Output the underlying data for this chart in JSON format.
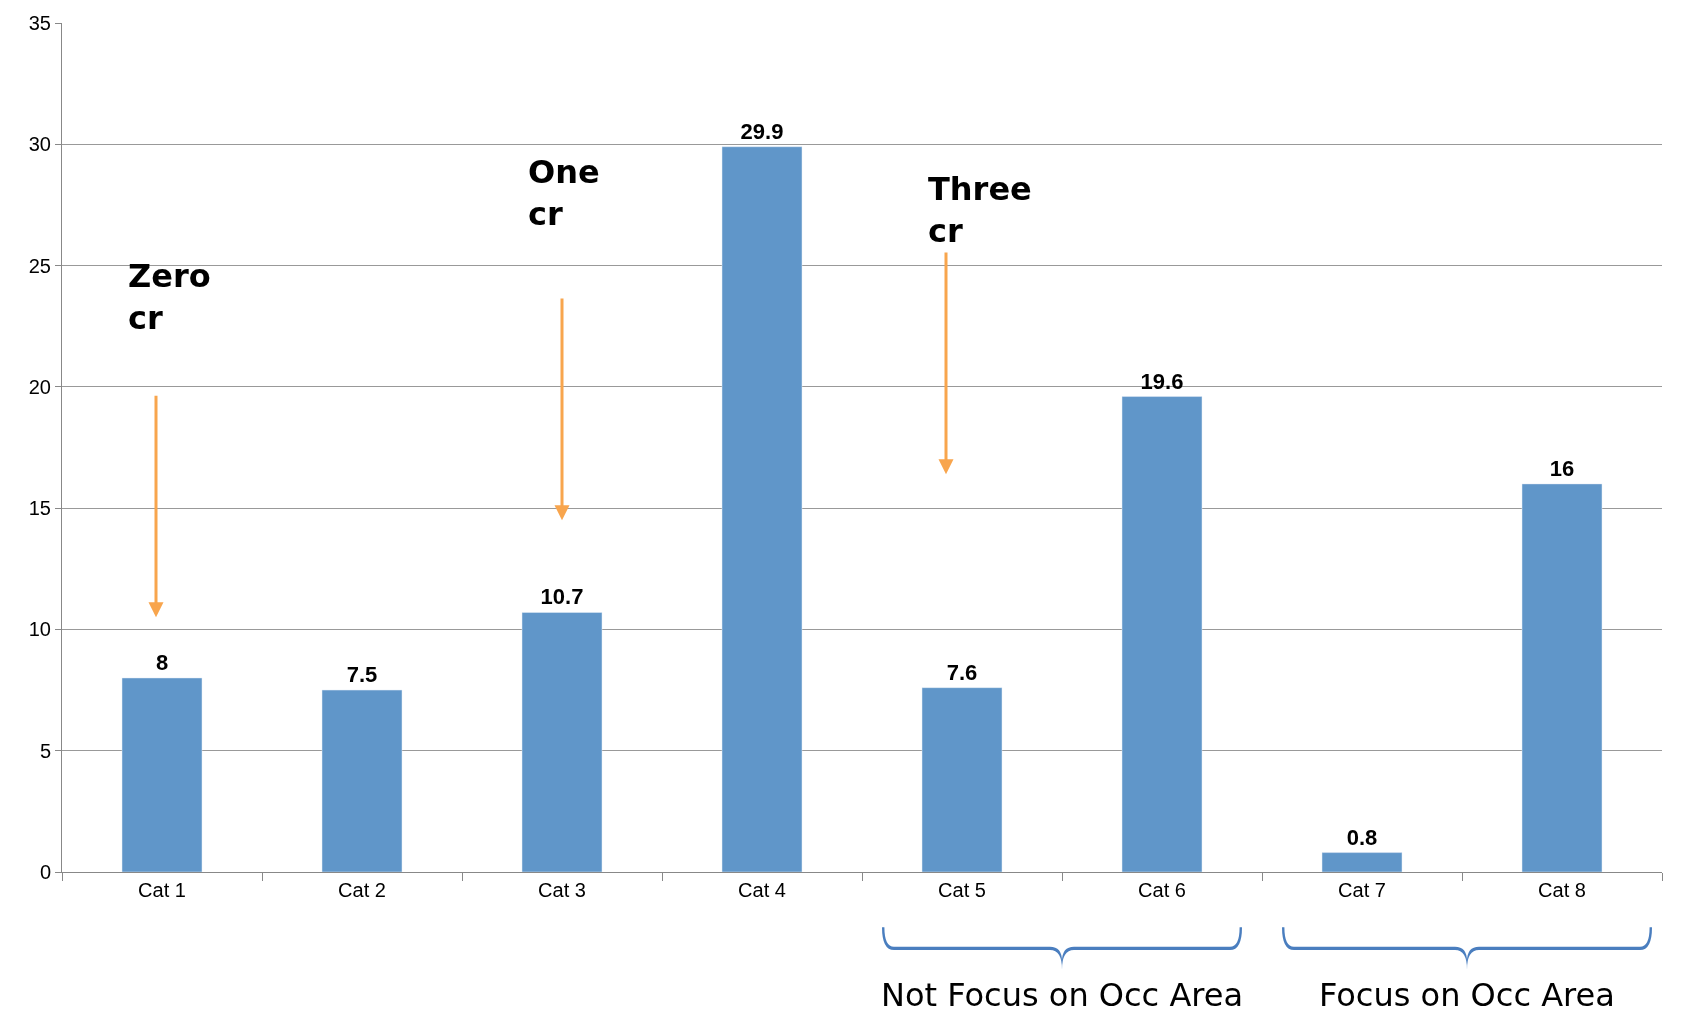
{
  "chart_data": {
    "type": "bar",
    "categories": [
      "Cat 1",
      "Cat 2",
      "Cat 3",
      "Cat 4",
      "Cat 5",
      "Cat 6",
      "Cat 7",
      "Cat 8"
    ],
    "values": [
      8,
      7.5,
      10.7,
      29.9,
      7.6,
      19.6,
      0.8,
      16
    ],
    "color": "#6096c9",
    "data_labels": true,
    "ylim": [
      0,
      35
    ],
    "yticks": [
      0,
      5,
      10,
      15,
      20,
      25,
      30,
      35
    ],
    "grid": "y",
    "annotations": [
      "Zero cr",
      "One cr",
      "Three cr",
      "Not Focus on Occ Area",
      "Focus on Occ Area"
    ]
  }
}
